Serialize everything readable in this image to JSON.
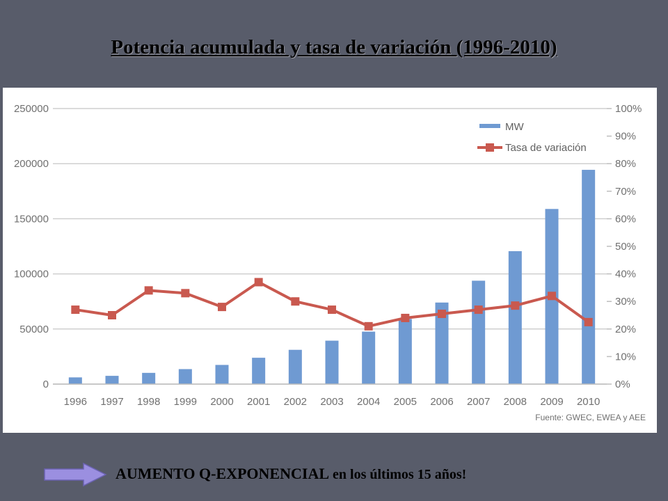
{
  "slide": {
    "title": "Potencia acumulada y tasa de variación (1996-2010)",
    "footer_part1": "AUMENTO Q-EXPONENCIAL",
    "footer_part2": " en los últimos 15 años!",
    "arrow_icon": "right-arrow-icon"
  },
  "colors": {
    "background": "#585c6a",
    "bar": "#6f9ad2",
    "line": "#c9594f",
    "arrow": "#9b8fe0"
  },
  "chart_data": {
    "type": "bar",
    "categories": [
      "1996",
      "1997",
      "1998",
      "1999",
      "2000",
      "2001",
      "2002",
      "2003",
      "2004",
      "2005",
      "2006",
      "2007",
      "2008",
      "2009",
      "2010"
    ],
    "series": [
      {
        "name": "MW",
        "type": "bar",
        "axis": "left",
        "values": [
          6100,
          7500,
          10200,
          13600,
          17400,
          23900,
          31100,
          39400,
          47600,
          59100,
          74000,
          93800,
          120600,
          158900,
          194400
        ]
      },
      {
        "name": "Tasa de variación",
        "type": "line",
        "axis": "right",
        "values": [
          27,
          25,
          34,
          33,
          28,
          37,
          30,
          27,
          21,
          24,
          25.5,
          27,
          28.5,
          32,
          22.5
        ]
      }
    ],
    "left_axis": {
      "ylim": [
        0,
        250000
      ],
      "ticks": [
        "0",
        "50000",
        "100000",
        "150000",
        "200000",
        "250000"
      ]
    },
    "right_axis": {
      "ylim": [
        0,
        100
      ],
      "ticks": [
        "0%",
        "10%",
        "20%",
        "30%",
        "40%",
        "50%",
        "60%",
        "70%",
        "80%",
        "90%",
        "100%"
      ]
    },
    "grid": true,
    "legend": "top-right",
    "source": "Fuente: GWEC, EWEA y AEE"
  }
}
